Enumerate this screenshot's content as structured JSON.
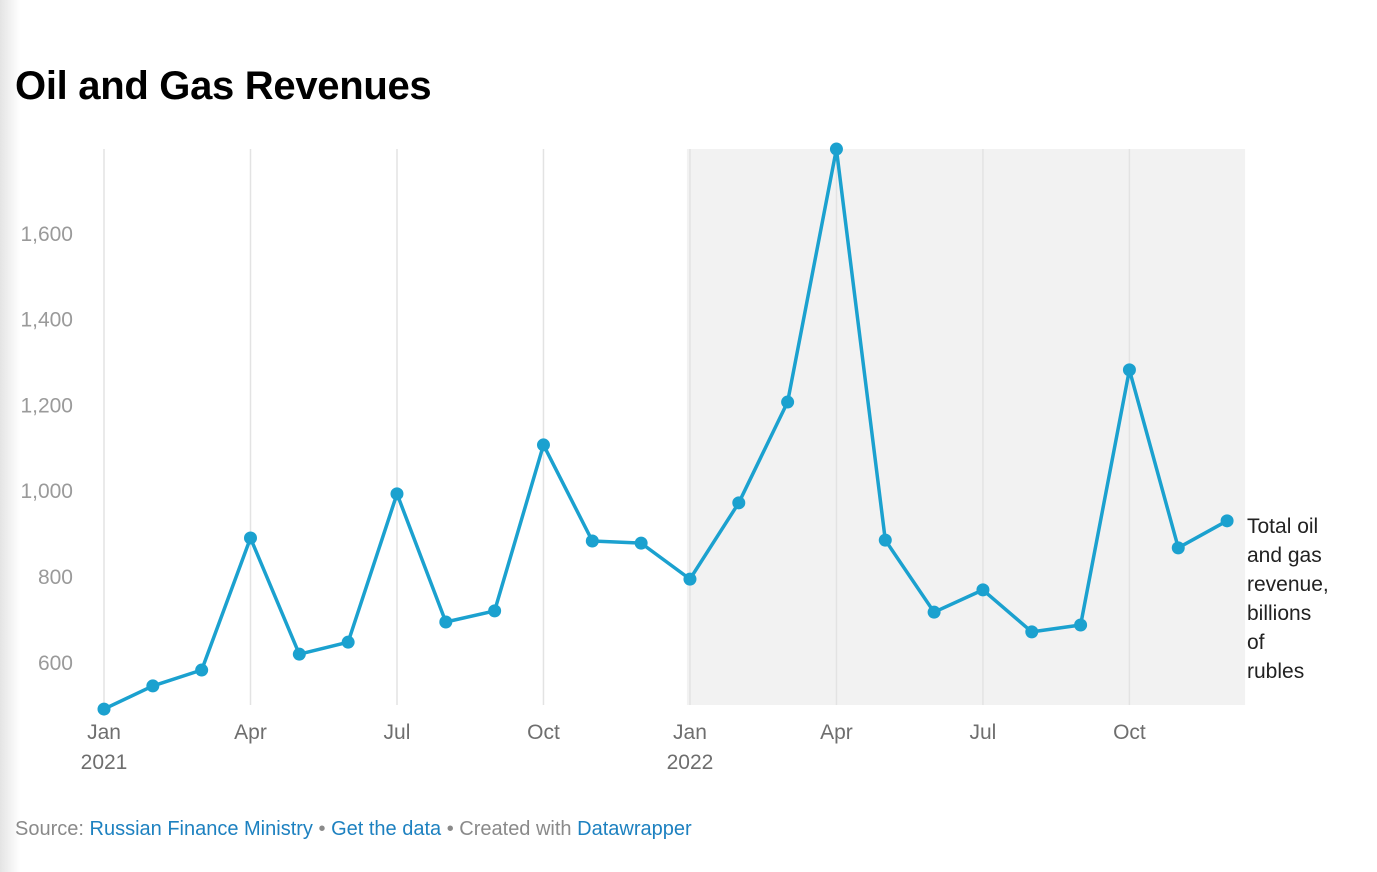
{
  "title": "Oil and Gas Revenues",
  "series_label": "Total oil and gas revenue, billions of rubles",
  "series_label_lines": [
    "Total oil",
    "and gas",
    "revenue,",
    "billions",
    "of",
    "rubles"
  ],
  "footer": {
    "source_prefix": "Source:",
    "source_link": "Russian Finance Ministry",
    "sep1": "•",
    "data_link": "Get the data",
    "sep2": "•",
    "created_text": "Created with",
    "created_link": "Datawrapper"
  },
  "colors": {
    "line": "#1ba1cf",
    "shade": "#f2f2f2",
    "grid": "#e3e3e3"
  },
  "chart_data": {
    "type": "line",
    "title": "Oil and Gas Revenues",
    "xlabel": "",
    "ylabel": "Total oil and gas revenue, billions of rubles",
    "ylim": [
      500,
      1800
    ],
    "yticks": [
      600,
      800,
      1000,
      1200,
      1400,
      1600
    ],
    "ytick_labels": [
      "600",
      "800",
      "1,000",
      "1,200",
      "1,400",
      "1,600"
    ],
    "grid": "vertical",
    "highlight_range": [
      "2022-01",
      "2022-12"
    ],
    "xticks": [
      {
        "month": 0,
        "label": "Jan",
        "year": "2021"
      },
      {
        "month": 3,
        "label": "Apr",
        "year": ""
      },
      {
        "month": 6,
        "label": "Jul",
        "year": ""
      },
      {
        "month": 9,
        "label": "Oct",
        "year": ""
      },
      {
        "month": 12,
        "label": "Jan",
        "year": "2022"
      },
      {
        "month": 15,
        "label": "Apr",
        "year": ""
      },
      {
        "month": 18,
        "label": "Jul",
        "year": ""
      },
      {
        "month": 21,
        "label": "Oct",
        "year": ""
      }
    ],
    "x": [
      "2021-01",
      "2021-02",
      "2021-03",
      "2021-04",
      "2021-05",
      "2021-06",
      "2021-07",
      "2021-08",
      "2021-09",
      "2021-10",
      "2021-11",
      "2021-12",
      "2022-01",
      "2022-02",
      "2022-03",
      "2022-04",
      "2022-05",
      "2022-06",
      "2022-07",
      "2022-08",
      "2022-09",
      "2022-10",
      "2022-11",
      "2022-12"
    ],
    "series": [
      {
        "name": "Total oil and gas revenue, billions of rubles",
        "values": [
          492,
          546,
          583,
          891,
          620,
          648,
          994,
          695,
          721,
          1108,
          884,
          879,
          795,
          973,
          1208,
          1798,
          886,
          718,
          770,
          672,
          688,
          1283,
          868,
          931
        ]
      }
    ]
  }
}
